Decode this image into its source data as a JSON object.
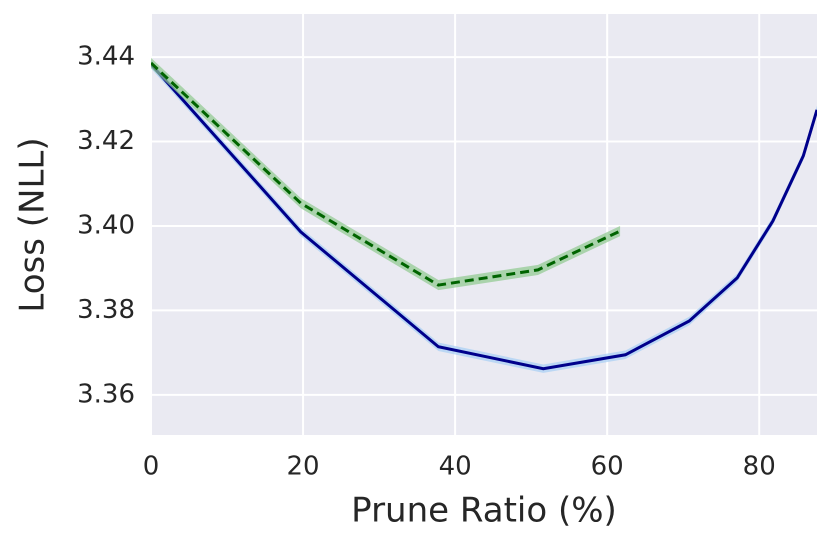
{
  "chart_data": {
    "type": "line",
    "xlabel": "Prune Ratio (%)",
    "ylabel": "Loss (NLL)",
    "xlim": [
      0,
      87.6
    ],
    "ylim": [
      3.3505,
      3.4502
    ],
    "xticks": [
      0,
      20,
      40,
      60,
      80
    ],
    "yticks": [
      {
        "value": 3.36,
        "label": "3.36"
      },
      {
        "value": 3.38,
        "label": "3.38"
      },
      {
        "value": 3.4,
        "label": "3.40"
      },
      {
        "value": 3.42,
        "label": "3.42"
      },
      {
        "value": 3.44,
        "label": "3.44"
      }
    ],
    "grid": true,
    "series": [
      {
        "color": "#00008b",
        "band_color": "#a6cff5",
        "dash": false,
        "x": [
          0,
          19.7,
          37.8,
          51.6,
          62.4,
          70.8,
          77.1,
          81.8,
          85.8,
          87.6
        ],
        "values": [
          3.4383,
          3.3986,
          3.3714,
          3.3662,
          3.3695,
          3.3775,
          3.3877,
          3.4012,
          3.4166,
          3.4275
        ],
        "errors": [
          0.001,
          0.001,
          0.001,
          0.001,
          0.001,
          0.001,
          0.001,
          0.001,
          0.001,
          0.001
        ]
      },
      {
        "color": "#006400",
        "band_color": "#8fc98f",
        "dash": true,
        "x": [
          0,
          19.7,
          37.8,
          50.9,
          61.7
        ],
        "values": [
          3.4386,
          3.4054,
          3.386,
          3.3896,
          3.3988
        ],
        "errors": [
          0.0012,
          0.0012,
          0.0012,
          0.0012,
          0.0012
        ]
      }
    ]
  }
}
